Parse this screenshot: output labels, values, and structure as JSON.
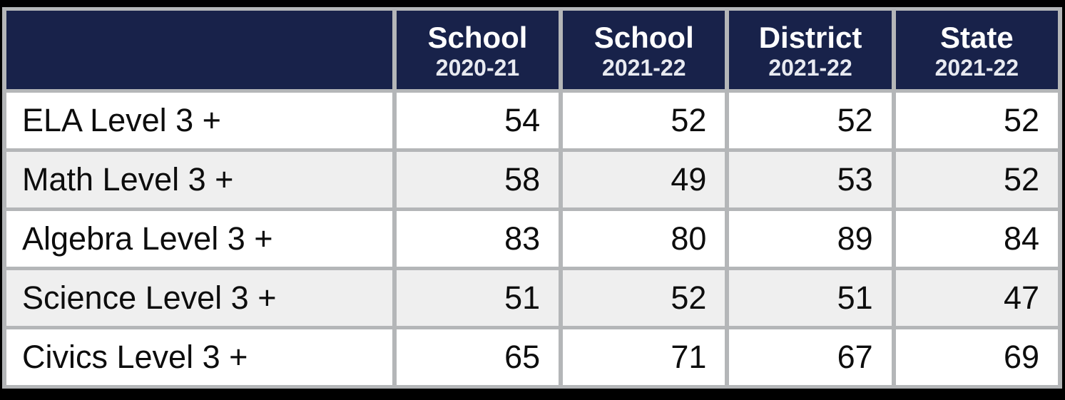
{
  "colors": {
    "frame": "#000000",
    "grid": "#b4b6b8",
    "header_bg": "#18224a",
    "header_text": "#ffffff",
    "header_year_text": "#e8eaf1",
    "row_bg": "#ffffff",
    "row_alt_bg": "#efefef",
    "body_text": "#0d0d0d"
  },
  "chart_data": {
    "type": "table",
    "title": "",
    "header": [
      {
        "label": "",
        "sub": ""
      },
      {
        "label": "School",
        "sub": "2020-21"
      },
      {
        "label": "School",
        "sub": "2021-22"
      },
      {
        "label": "District",
        "sub": "2021-22"
      },
      {
        "label": "State",
        "sub": "2021-22"
      }
    ],
    "rows": [
      {
        "label": "ELA Level 3 +",
        "values": [
          54,
          52,
          52,
          52
        ]
      },
      {
        "label": "Math Level 3 +",
        "values": [
          58,
          49,
          53,
          52
        ]
      },
      {
        "label": "Algebra Level 3 +",
        "values": [
          83,
          80,
          89,
          84
        ]
      },
      {
        "label": "Science Level 3 +",
        "values": [
          51,
          52,
          51,
          47
        ]
      },
      {
        "label": "Civics Level 3 +",
        "values": [
          65,
          71,
          67,
          69
        ]
      }
    ]
  }
}
